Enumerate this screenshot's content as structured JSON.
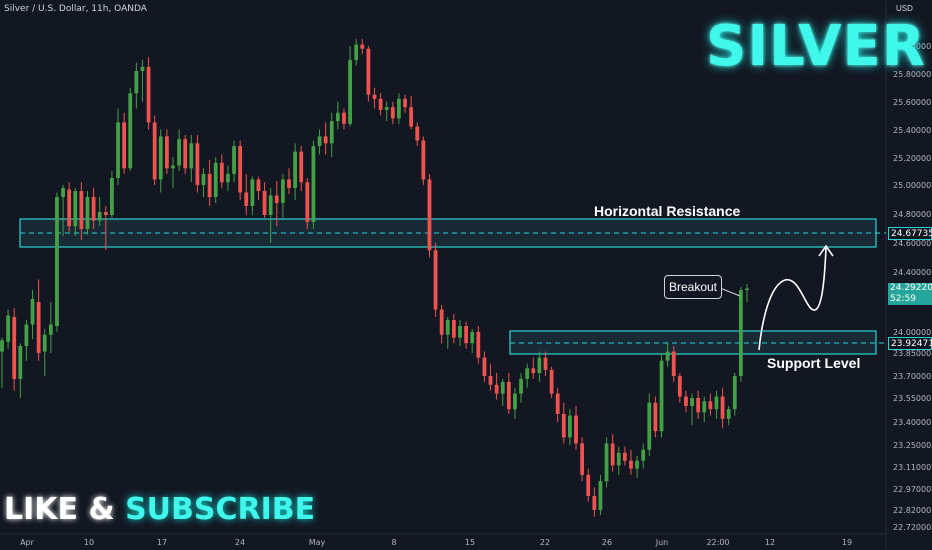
{
  "header": {
    "symbol_line": "Silver / U.S. Dollar, 11h, OANDA"
  },
  "overlay": {
    "title": "SILVER",
    "cta_like": "LIKE &",
    "cta_subscribe": "SUBSCRIBE",
    "resistance_label": "Horizontal Resistance",
    "support_label": "Support Level",
    "breakout_label": "Breakout"
  },
  "price_axis": {
    "currency": "USD",
    "ticks": [
      "26.00000",
      "25.80000",
      "25.60000",
      "25.40000",
      "25.20000",
      "25.00000",
      "24.80000",
      "24.60000",
      "24.40000",
      "24.00000",
      "23.85000",
      "23.70000",
      "23.55000",
      "23.40000",
      "23.25000",
      "23.11000",
      "22.97000",
      "22.82000",
      "22.72000"
    ]
  },
  "time_axis": {
    "ticks": [
      "Apr",
      "10",
      "17",
      "24",
      "May",
      "8",
      "15",
      "22",
      "26",
      "Jun",
      "22:00",
      "12",
      "19"
    ]
  },
  "price_tags": {
    "resistance": "24.67735",
    "current": "24.29220",
    "countdown": "52:59",
    "support": "23.92471"
  },
  "colors": {
    "up": "#26a69a",
    "up_body": "#43a047",
    "down": "#ef5350",
    "zone": "#29d3d3",
    "bg": "#131722"
  },
  "chart_data": {
    "type": "candlestick",
    "ohlc": [
      [
        23.86,
        23.96,
        23.62,
        23.94
      ],
      [
        23.93,
        24.15,
        23.88,
        24.11
      ],
      [
        24.1,
        24.16,
        23.6,
        23.68
      ],
      [
        23.68,
        23.92,
        23.55,
        23.9
      ],
      [
        23.9,
        24.08,
        23.8,
        24.05
      ],
      [
        24.05,
        24.28,
        23.95,
        24.22
      ],
      [
        24.2,
        24.35,
        23.8,
        23.85
      ],
      [
        23.86,
        24.02,
        23.7,
        23.98
      ],
      [
        23.98,
        24.2,
        23.85,
        24.05
      ],
      [
        24.04,
        24.95,
        24.0,
        24.92
      ],
      [
        24.92,
        25.0,
        24.65,
        24.98
      ],
      [
        24.97,
        25.02,
        24.68,
        24.72
      ],
      [
        24.72,
        24.98,
        24.65,
        24.96
      ],
      [
        24.96,
        25.02,
        24.62,
        24.7
      ],
      [
        24.7,
        24.96,
        24.66,
        24.92
      ],
      [
        24.92,
        24.98,
        24.7,
        24.76
      ],
      [
        24.76,
        24.92,
        24.72,
        24.82
      ],
      [
        24.82,
        24.86,
        24.55,
        24.8
      ],
      [
        24.8,
        25.1,
        24.78,
        25.05
      ],
      [
        25.05,
        25.55,
        25.0,
        25.45
      ],
      [
        25.45,
        25.52,
        25.08,
        25.12
      ],
      [
        25.12,
        25.7,
        25.1,
        25.66
      ],
      [
        25.66,
        25.88,
        25.55,
        25.82
      ],
      [
        25.82,
        25.9,
        25.6,
        25.85
      ],
      [
        25.85,
        25.92,
        25.4,
        25.45
      ],
      [
        25.45,
        25.5,
        25.0,
        25.04
      ],
      [
        25.04,
        25.4,
        24.95,
        25.35
      ],
      [
        25.35,
        25.4,
        25.08,
        25.12
      ],
      [
        25.12,
        25.2,
        24.98,
        25.14
      ],
      [
        25.14,
        25.4,
        25.1,
        25.33
      ],
      [
        25.33,
        25.36,
        25.08,
        25.12
      ],
      [
        25.12,
        25.36,
        25.02,
        25.3
      ],
      [
        25.3,
        25.36,
        24.95,
        25.0
      ],
      [
        25.0,
        25.12,
        24.92,
        25.08
      ],
      [
        25.08,
        25.18,
        24.86,
        24.92
      ],
      [
        24.92,
        25.2,
        24.88,
        25.16
      ],
      [
        25.16,
        25.22,
        24.98,
        25.02
      ],
      [
        25.02,
        25.14,
        24.96,
        25.08
      ],
      [
        25.08,
        25.32,
        25.02,
        25.28
      ],
      [
        25.28,
        25.32,
        24.9,
        24.95
      ],
      [
        24.95,
        25.08,
        24.8,
        24.86
      ],
      [
        24.86,
        25.06,
        24.8,
        25.04
      ],
      [
        25.04,
        25.06,
        24.9,
        24.96
      ],
      [
        24.96,
        25.02,
        24.78,
        24.8
      ],
      [
        24.8,
        24.98,
        24.6,
        24.93
      ],
      [
        24.93,
        25.03,
        24.72,
        24.88
      ],
      [
        24.88,
        25.08,
        24.78,
        25.04
      ],
      [
        25.04,
        25.12,
        24.94,
        24.98
      ],
      [
        24.98,
        25.3,
        24.9,
        25.24
      ],
      [
        25.24,
        25.28,
        24.96,
        25.02
      ],
      [
        25.02,
        25.05,
        24.7,
        24.75
      ],
      [
        24.75,
        25.32,
        24.7,
        25.28
      ],
      [
        25.28,
        25.4,
        25.22,
        25.35
      ],
      [
        25.35,
        25.45,
        25.22,
        25.3
      ],
      [
        25.3,
        25.52,
        25.2,
        25.46
      ],
      [
        25.46,
        25.6,
        25.4,
        25.52
      ],
      [
        25.52,
        25.55,
        25.4,
        25.44
      ],
      [
        25.44,
        26.0,
        25.42,
        25.9
      ],
      [
        25.9,
        26.05,
        25.86,
        26.01
      ],
      [
        26.01,
        26.05,
        25.94,
        25.98
      ],
      [
        25.98,
        26.0,
        25.6,
        25.65
      ],
      [
        25.65,
        25.7,
        25.55,
        25.62
      ],
      [
        25.62,
        25.66,
        25.5,
        25.54
      ],
      [
        25.54,
        25.6,
        25.46,
        25.56
      ],
      [
        25.56,
        25.6,
        25.44,
        25.48
      ],
      [
        25.48,
        25.66,
        25.44,
        25.62
      ],
      [
        25.62,
        25.65,
        25.52,
        25.56
      ],
      [
        25.56,
        25.64,
        25.4,
        25.42
      ],
      [
        25.42,
        25.45,
        25.28,
        25.32
      ],
      [
        25.32,
        25.35,
        25.0,
        25.04
      ],
      [
        25.04,
        25.08,
        24.5,
        24.55
      ],
      [
        24.55,
        24.6,
        24.1,
        24.15
      ],
      [
        24.15,
        24.18,
        23.92,
        23.98
      ],
      [
        23.98,
        24.1,
        23.88,
        24.08
      ],
      [
        24.08,
        24.12,
        23.92,
        23.96
      ],
      [
        23.96,
        24.08,
        23.9,
        24.04
      ],
      [
        24.04,
        24.07,
        23.88,
        23.92
      ],
      [
        23.92,
        24.02,
        23.85,
        24.0
      ],
      [
        24.0,
        24.04,
        23.78,
        23.82
      ],
      [
        23.82,
        23.86,
        23.66,
        23.7
      ],
      [
        23.7,
        23.78,
        23.6,
        23.64
      ],
      [
        23.64,
        23.72,
        23.54,
        23.58
      ],
      [
        23.58,
        23.68,
        23.5,
        23.66
      ],
      [
        23.66,
        23.72,
        23.45,
        23.48
      ],
      [
        23.48,
        23.62,
        23.42,
        23.58
      ],
      [
        23.58,
        23.72,
        23.52,
        23.68
      ],
      [
        23.68,
        23.78,
        23.62,
        23.75
      ],
      [
        23.75,
        23.82,
        23.68,
        23.72
      ],
      [
        23.72,
        23.86,
        23.66,
        23.82
      ],
      [
        23.82,
        23.86,
        23.7,
        23.74
      ],
      [
        23.74,
        23.76,
        23.55,
        23.58
      ],
      [
        23.58,
        23.62,
        23.4,
        23.45
      ],
      [
        23.45,
        23.52,
        23.26,
        23.3
      ],
      [
        23.3,
        23.48,
        23.25,
        23.44
      ],
      [
        23.44,
        23.5,
        23.22,
        23.26
      ],
      [
        23.26,
        23.3,
        23.02,
        23.06
      ],
      [
        23.06,
        23.1,
        22.88,
        22.92
      ],
      [
        22.92,
        22.98,
        22.78,
        22.82
      ],
      [
        22.82,
        23.06,
        22.79,
        23.02
      ],
      [
        23.02,
        23.3,
        22.98,
        23.26
      ],
      [
        23.26,
        23.32,
        23.08,
        23.12
      ],
      [
        23.12,
        23.24,
        23.06,
        23.2
      ],
      [
        23.2,
        23.24,
        23.12,
        23.15
      ],
      [
        23.15,
        23.22,
        23.06,
        23.1
      ],
      [
        23.1,
        23.18,
        23.04,
        23.15
      ],
      [
        23.15,
        23.26,
        23.1,
        23.22
      ],
      [
        23.22,
        23.58,
        23.18,
        23.52
      ],
      [
        23.52,
        23.56,
        23.3,
        23.34
      ],
      [
        23.34,
        23.85,
        23.3,
        23.8
      ],
      [
        23.8,
        23.92,
        23.76,
        23.86
      ],
      [
        23.86,
        23.9,
        23.66,
        23.7
      ],
      [
        23.7,
        23.72,
        23.52,
        23.56
      ],
      [
        23.56,
        23.6,
        23.46,
        23.5
      ],
      [
        23.5,
        23.58,
        23.38,
        23.55
      ],
      [
        23.55,
        23.6,
        23.42,
        23.46
      ],
      [
        23.46,
        23.56,
        23.4,
        23.53
      ],
      [
        23.53,
        23.58,
        23.44,
        23.48
      ],
      [
        23.48,
        23.6,
        23.42,
        23.56
      ],
      [
        23.56,
        23.62,
        23.36,
        23.42
      ],
      [
        23.42,
        23.5,
        23.38,
        23.48
      ],
      [
        23.48,
        23.72,
        23.44,
        23.7
      ],
      [
        23.7,
        24.3,
        23.66,
        24.28
      ],
      [
        24.28,
        24.32,
        24.2,
        24.29
      ]
    ],
    "ylim": [
      22.72,
      26.12
    ],
    "resistance_zone": [
      24.8,
      24.55
    ],
    "resistance_level": 24.67735,
    "support_zone": [
      24.0,
      23.82
    ],
    "support_level": 23.92471,
    "grid": false
  }
}
